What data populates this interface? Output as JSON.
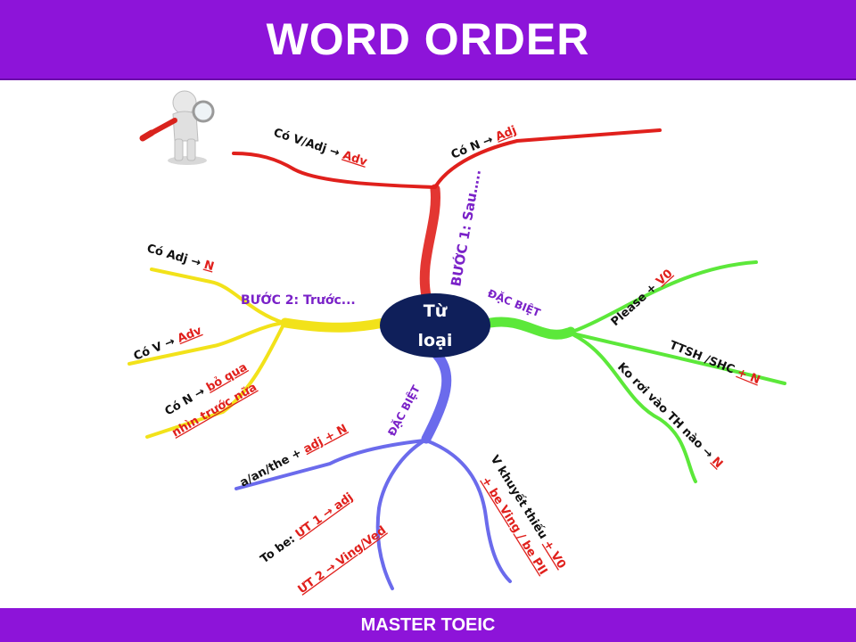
{
  "title": "WORD ORDER",
  "footer": "MASTER TOEIC",
  "center": {
    "line1": "Từ",
    "line2": "loại"
  },
  "branches": {
    "top": {
      "label": "BƯỚC 1: Sau…..",
      "items": [
        {
          "prefix": "Có V/Adj → ",
          "answer": "Adv"
        },
        {
          "prefix": "Có N → ",
          "answer": "Adj"
        }
      ]
    },
    "left": {
      "label": "BƯỚC 2: Trước...",
      "items": [
        {
          "prefix": "Có Adj → ",
          "answer": "N"
        },
        {
          "prefix": "Có V → ",
          "answer": "Adv"
        },
        {
          "prefix": "Có N → ",
          "answer": "bỏ qua",
          "answer2": "nhìn trước nữa"
        }
      ]
    },
    "right": {
      "label": "ĐẶC BIỆT",
      "items": [
        {
          "prefix": "Please + ",
          "answer": "V0"
        },
        {
          "prefix": "TTSH /SHC ",
          "answer": "+ N"
        },
        {
          "prefix": "Ko rơi vào TH nào → ",
          "answer": "N"
        }
      ]
    },
    "bottom": {
      "label": "ĐẶC BIỆT",
      "items": [
        {
          "prefix": "a/an/the + ",
          "answer": "adj + N"
        },
        {
          "prefix": "To be: ",
          "answer": "ƯT 1 → adj",
          "answer2": "ƯT 2 → Ving/Ved"
        },
        {
          "prefix": "V khuyết thiếu ",
          "answer": "+ V0",
          "answer2": "+ be Ving / be PII"
        }
      ]
    }
  },
  "colors": {
    "header": "#8d14d9",
    "red": "#e0201c",
    "yellow": "#f2e21a",
    "green": "#5ce83a",
    "blue": "#6b6bec",
    "center": "#0f1f5a"
  },
  "icons": [
    "magnifier-figure-icon"
  ]
}
